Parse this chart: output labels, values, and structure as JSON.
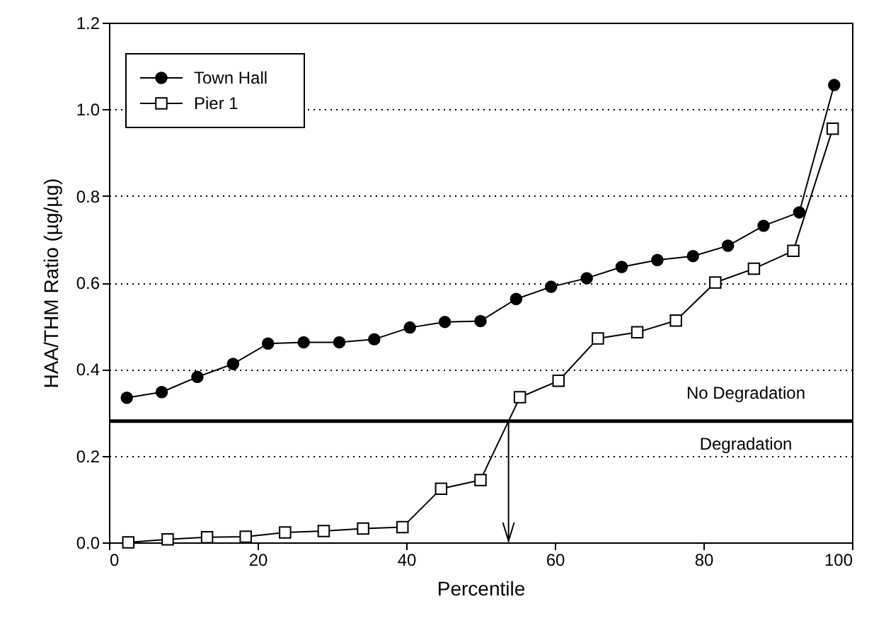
{
  "chart_data": {
    "type": "line",
    "xlabel": "Percentile",
    "ylabel": "HAA/THM Ratio (µg/µg)",
    "xlim": [
      0,
      100
    ],
    "xticks": [
      0,
      20,
      40,
      60,
      80,
      100
    ],
    "ylim": [
      0,
      1.2
    ],
    "yticks": [
      {
        "value": 0,
        "label": "0.0"
      },
      0.2,
      0.4,
      0.6,
      0.8,
      {
        "value": 1,
        "label": "1.0"
      },
      1.2
    ],
    "grid": "y",
    "legend": "top left",
    "series": [
      {
        "name": "Town Hall",
        "color": "#000000",
        "marker": "circle",
        "x": [
          2.4,
          7.1,
          11.9,
          16.7,
          21.4,
          26.2,
          31.0,
          35.7,
          40.5,
          45.2,
          50.0,
          54.8,
          59.5,
          64.3,
          69.0,
          73.8,
          78.6,
          83.3,
          88.1,
          92.9,
          97.6
        ],
        "values": [
          0.334,
          0.347,
          0.382,
          0.412,
          0.459,
          0.462,
          0.462,
          0.469,
          0.496,
          0.509,
          0.511,
          0.562,
          0.59,
          0.61,
          0.636,
          0.652,
          0.661,
          0.685,
          0.731,
          0.762,
          1.056
        ]
      },
      {
        "name": "Pier 1",
        "color": "#000000",
        "marker": "square",
        "x": [
          2.6,
          7.9,
          13.2,
          18.4,
          23.7,
          28.9,
          34.2,
          39.5,
          44.7,
          50.0,
          55.3,
          60.5,
          65.8,
          71.1,
          76.3,
          81.6,
          86.8,
          92.1,
          97.4
        ],
        "values": [
          0.0,
          0.007,
          0.012,
          0.013,
          0.023,
          0.026,
          0.032,
          0.035,
          0.124,
          0.144,
          0.335,
          0.373,
          0.471,
          0.485,
          0.512,
          0.6,
          0.632,
          0.673,
          0.955
        ]
      }
    ],
    "ref_lines": [
      {
        "axis": "y",
        "value": 0.28,
        "color": "#000000"
      }
    ],
    "annotations": [
      "No Degradation",
      "Degradation"
    ]
  }
}
